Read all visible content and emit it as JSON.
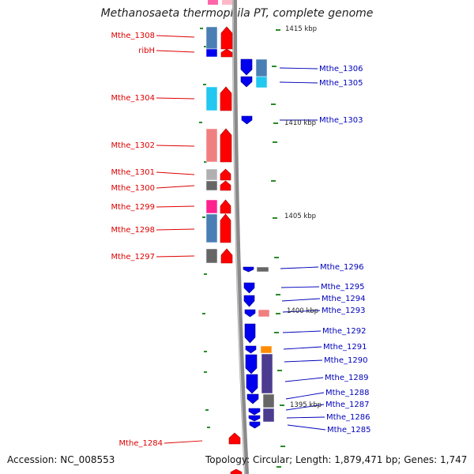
{
  "title": "Methanosaeta thermophila PT, complete genome",
  "footer": {
    "accession": "Accession: NC_008553",
    "summary": "Topology: Circular; Length: 1,879,471 bp; Genes: 1,747"
  },
  "colors": {
    "label_left": "#dd0000",
    "label_right": "#0000bb",
    "backbone": "#8a8a8a",
    "tick": "#2a8a2a",
    "arrow_forward": "#ff0000",
    "arrow_reverse": "#0000ee"
  },
  "kbp_marks": [
    {
      "label": "1415 kbp",
      "side": "right"
    },
    {
      "label": "1410 kbp",
      "side": "right"
    },
    {
      "label": "1405 kbp",
      "side": "right"
    },
    {
      "label": "1400 kbp",
      "side": "right"
    },
    {
      "label": "1395 kbp",
      "side": "right"
    }
  ],
  "left_genes": [
    {
      "label": "Mthe_1308",
      "strand": "forward",
      "cog_color": "#4a7fb5"
    },
    {
      "label": "ribH",
      "strand": "forward",
      "cog_color": "#0000ee"
    },
    {
      "label": "Mthe_1304",
      "strand": "forward",
      "cog_color": "#22c8f0"
    },
    {
      "label": "Mthe_1302",
      "strand": "forward",
      "cog_color": "#f08080"
    },
    {
      "label": "Mthe_1301",
      "strand": "forward",
      "cog_color": "#b0b0b0"
    },
    {
      "label": "Mthe_1300",
      "strand": "forward",
      "cog_color": "#666666"
    },
    {
      "label": "Mthe_1299",
      "strand": "forward",
      "cog_color": "#ff2090"
    },
    {
      "label": "Mthe_1298",
      "strand": "forward",
      "cog_color": "#4a7fb5"
    },
    {
      "label": "Mthe_1297",
      "strand": "forward",
      "cog_color": "#666666"
    },
    {
      "label": "Mthe_1284",
      "strand": "forward",
      "cog_color": ""
    }
  ],
  "right_genes": [
    {
      "label": "Mthe_1306",
      "strand": "reverse",
      "cog_color": "#4a7fb5"
    },
    {
      "label": "Mthe_1305",
      "strand": "reverse",
      "cog_color": "#22c8f0"
    },
    {
      "label": "Mthe_1303",
      "strand": "reverse",
      "cog_color": ""
    },
    {
      "label": "Mthe_1296",
      "strand": "reverse",
      "cog_color": "#666666"
    },
    {
      "label": "Mthe_1295",
      "strand": "reverse",
      "cog_color": ""
    },
    {
      "label": "Mthe_1294",
      "strand": "reverse",
      "cog_color": ""
    },
    {
      "label": "Mthe_1293",
      "strand": "reverse",
      "cog_color": "#f08080"
    },
    {
      "label": "Mthe_1292",
      "strand": "reverse",
      "cog_color": ""
    },
    {
      "label": "Mthe_1291",
      "strand": "reverse",
      "cog_color": "#ff8c00"
    },
    {
      "label": "Mthe_1290",
      "strand": "reverse",
      "cog_color": "#4b3c8f"
    },
    {
      "label": "Mthe_1289",
      "strand": "reverse",
      "cog_color": "#4b3c8f"
    },
    {
      "label": "Mthe_1288",
      "strand": "reverse",
      "cog_color": "#4b3c8f"
    },
    {
      "label": "Mthe_1287",
      "strand": "reverse",
      "cog_color": "#666666"
    },
    {
      "label": "Mthe_1286",
      "strand": "reverse",
      "cog_color": "#4b3c8f"
    },
    {
      "label": "Mthe_1285",
      "strand": "reverse",
      "cog_color": "#4b3c8f"
    }
  ]
}
